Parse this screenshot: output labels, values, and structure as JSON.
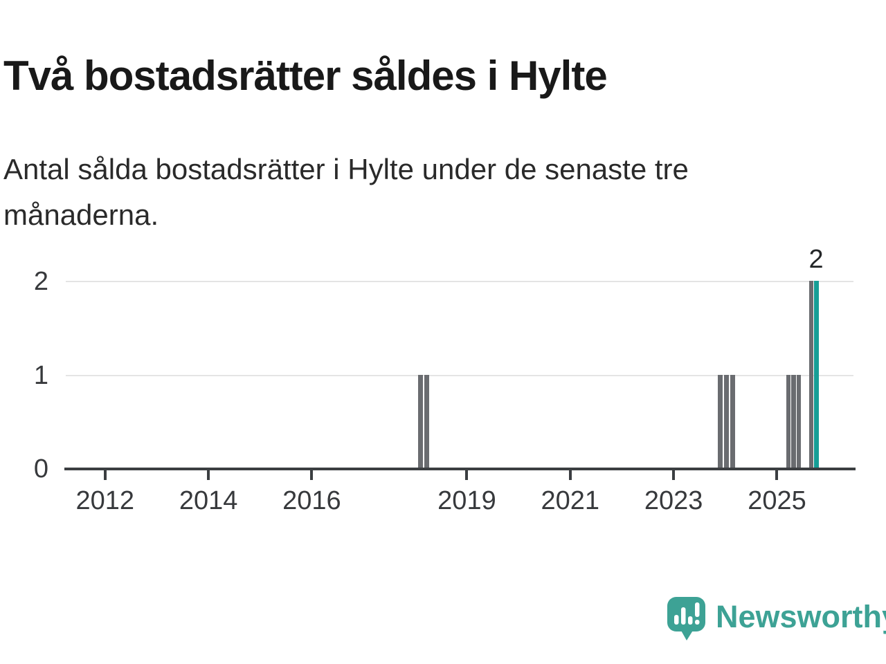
{
  "header": {
    "title": "Två bostadsrätter såldes i Hylte",
    "subtitle": "Antal sålda bostadsrätter i Hylte under de senaste tre månaderna."
  },
  "chart_data": {
    "type": "bar",
    "title": "Två bostadsrätter såldes i Hylte",
    "subtitle": "Antal sålda bostadsrätter i Hylte under de senaste tre månaderna.",
    "ylabel": "",
    "xlabel": "",
    "x_tick_labels": [
      "2012",
      "2014",
      "2016",
      "2019",
      "2021",
      "2023",
      "2025"
    ],
    "x_tick_years": [
      2012,
      2014,
      2016,
      2019,
      2021,
      2023,
      2025
    ],
    "y_ticks": [
      0,
      1,
      2
    ],
    "xlim": [
      2011.24,
      2026.48
    ],
    "ylim": [
      0,
      2
    ],
    "grid": "horizontal-light",
    "legend": "none",
    "bars": [
      {
        "x": 2018.06,
        "value": 1,
        "highlight": false
      },
      {
        "x": 2018.18,
        "value": 1,
        "highlight": false
      },
      {
        "x": 2023.86,
        "value": 1,
        "highlight": false
      },
      {
        "x": 2023.98,
        "value": 1,
        "highlight": false
      },
      {
        "x": 2024.1,
        "value": 1,
        "highlight": false
      },
      {
        "x": 2025.18,
        "value": 1,
        "highlight": false
      },
      {
        "x": 2025.28,
        "value": 1,
        "highlight": false
      },
      {
        "x": 2025.38,
        "value": 1,
        "highlight": false
      },
      {
        "x": 2025.62,
        "value": 2,
        "highlight": false
      },
      {
        "x": 2025.72,
        "value": 2,
        "highlight": true
      }
    ],
    "value_label": {
      "text": "2",
      "x": 2025.715
    },
    "colors": {
      "bar": "#6a6c70",
      "highlight": "#169e96",
      "axis": "#3b3e41",
      "grid": "#e4e4e4",
      "tick_text": "#37393c"
    }
  },
  "footer": {
    "brand_name": "Newsworthy",
    "logo_icon": "speech-bubble-bar-chart-icon",
    "brand_color": "#3da295"
  }
}
